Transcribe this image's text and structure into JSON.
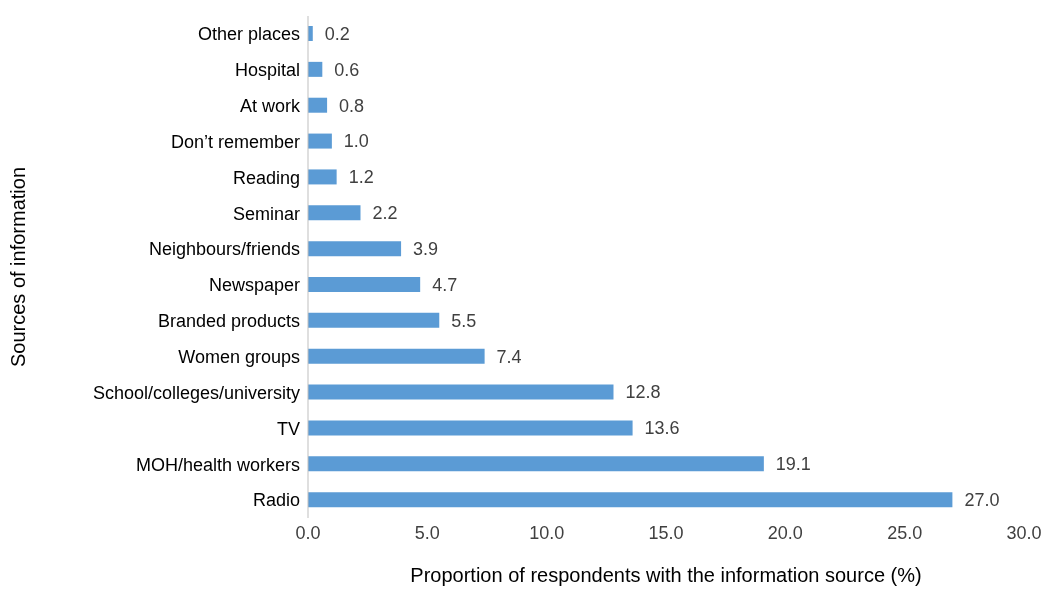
{
  "chart_data": {
    "type": "bar",
    "orientation": "horizontal",
    "xlabel": "Proportion of respondents with the information source (%)",
    "ylabel": "Sources of information",
    "categories": [
      "Other places",
      "Hospital",
      "At work",
      "Don’t remember",
      "Reading",
      "Seminar",
      "Neighbours/friends",
      "Newspaper",
      "Branded products",
      "Women groups",
      "School/colleges/university",
      "TV",
      "MOH/health workers",
      "Radio"
    ],
    "values": [
      0.2,
      0.6,
      0.8,
      1.0,
      1.2,
      2.2,
      3.9,
      4.7,
      5.5,
      7.4,
      12.8,
      13.6,
      19.1,
      27.0
    ],
    "value_labels": [
      "0.2",
      "0.6",
      "0.8",
      "1.0",
      "1.2",
      "2.2",
      "3.9",
      "4.7",
      "5.5",
      "7.4",
      "12.8",
      "13.6",
      "19.1",
      "27.0"
    ],
    "color": "#5b9bd5",
    "xlim": [
      0,
      30
    ],
    "xticks": [
      {
        "value": 0,
        "label": "0.0"
      },
      {
        "value": 5,
        "label": "5.0"
      },
      {
        "value": 10,
        "label": "10.0"
      },
      {
        "value": 15,
        "label": "15.0"
      },
      {
        "value": 20,
        "label": "20.0"
      },
      {
        "value": 25,
        "label": "25.0"
      },
      {
        "value": 30,
        "label": "30.0"
      }
    ],
    "grid": false,
    "legend": false
  }
}
